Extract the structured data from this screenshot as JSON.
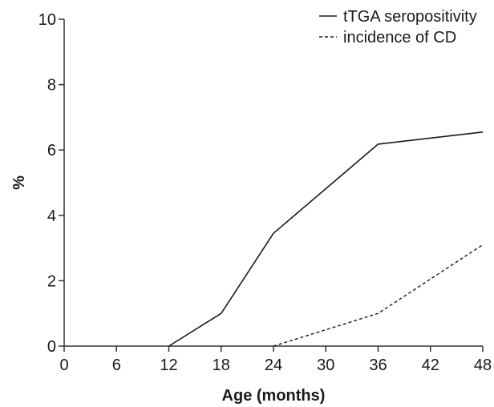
{
  "chart_data": {
    "type": "line",
    "title": "",
    "xlabel": "Age (months)",
    "ylabel": "%",
    "x_ticks": [
      "0",
      "6",
      "12",
      "18",
      "24",
      "30",
      "36",
      "42",
      "48"
    ],
    "y_ticks": [
      "0",
      "2",
      "4",
      "6",
      "8",
      "10"
    ],
    "xlim": [
      0,
      48
    ],
    "ylim": [
      0,
      10
    ],
    "grid": false,
    "legend_position": "top-right",
    "series": [
      {
        "name": "tTGA seropositivity",
        "style": "solid",
        "color": "#1a1a1a",
        "x": [
          12,
          18,
          24,
          36,
          48
        ],
        "y": [
          0,
          1.0,
          3.45,
          6.18,
          6.55
        ]
      },
      {
        "name": "incidence of CD",
        "style": "dashed",
        "color": "#1a1a1a",
        "x": [
          24,
          36,
          48
        ],
        "y": [
          0,
          1.0,
          3.1
        ]
      }
    ]
  }
}
